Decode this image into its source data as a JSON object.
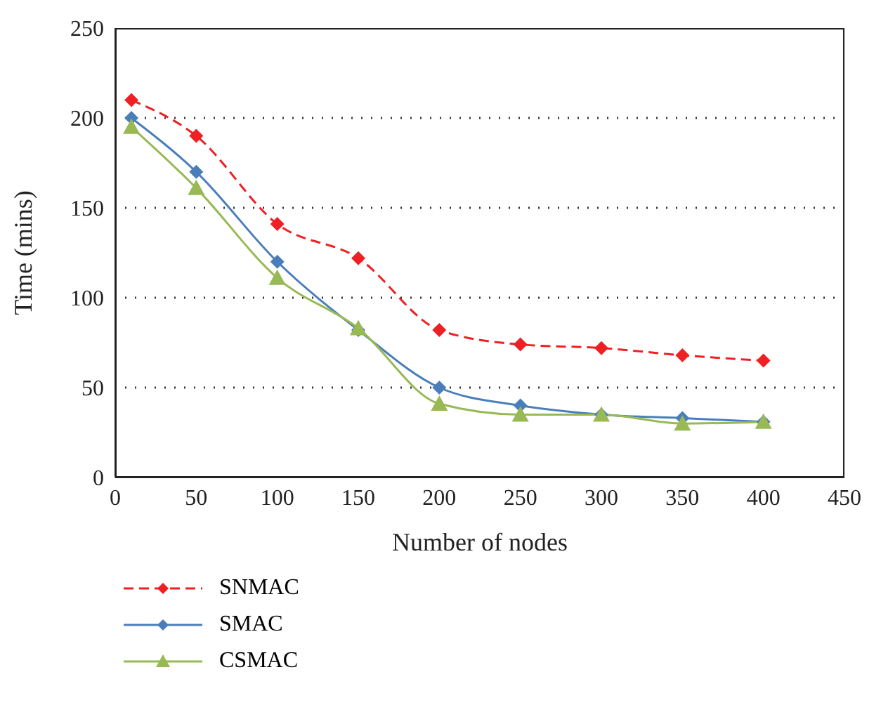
{
  "chart_data": {
    "type": "line",
    "xlabel": "Number of nodes",
    "ylabel": "Time (mins)",
    "x": [
      10,
      50,
      100,
      150,
      200,
      250,
      300,
      350,
      400
    ],
    "series": [
      {
        "name": "SNMAC",
        "color": "#ee2024",
        "line_style": "dashed",
        "marker": "diamond",
        "values": [
          210,
          190,
          141,
          122,
          82,
          74,
          72,
          68,
          65
        ]
      },
      {
        "name": "SMAC",
        "color": "#4a7ebb",
        "line_style": "solid",
        "marker": "diamond",
        "values": [
          200,
          170,
          120,
          82,
          50,
          40,
          35,
          33,
          31
        ]
      },
      {
        "name": "CSMAC",
        "color": "#98b954",
        "line_style": "solid",
        "marker": "triangle",
        "values": [
          195,
          161,
          111,
          83,
          41,
          35,
          35,
          30,
          31
        ]
      }
    ],
    "xlim": [
      0,
      450
    ],
    "xticks": [
      0,
      50,
      100,
      150,
      200,
      250,
      300,
      350,
      400,
      450
    ],
    "ylim": [
      0,
      250
    ],
    "yticks": [
      0,
      50,
      100,
      150,
      200,
      250
    ],
    "grid": "y",
    "legend": "bottom left"
  }
}
